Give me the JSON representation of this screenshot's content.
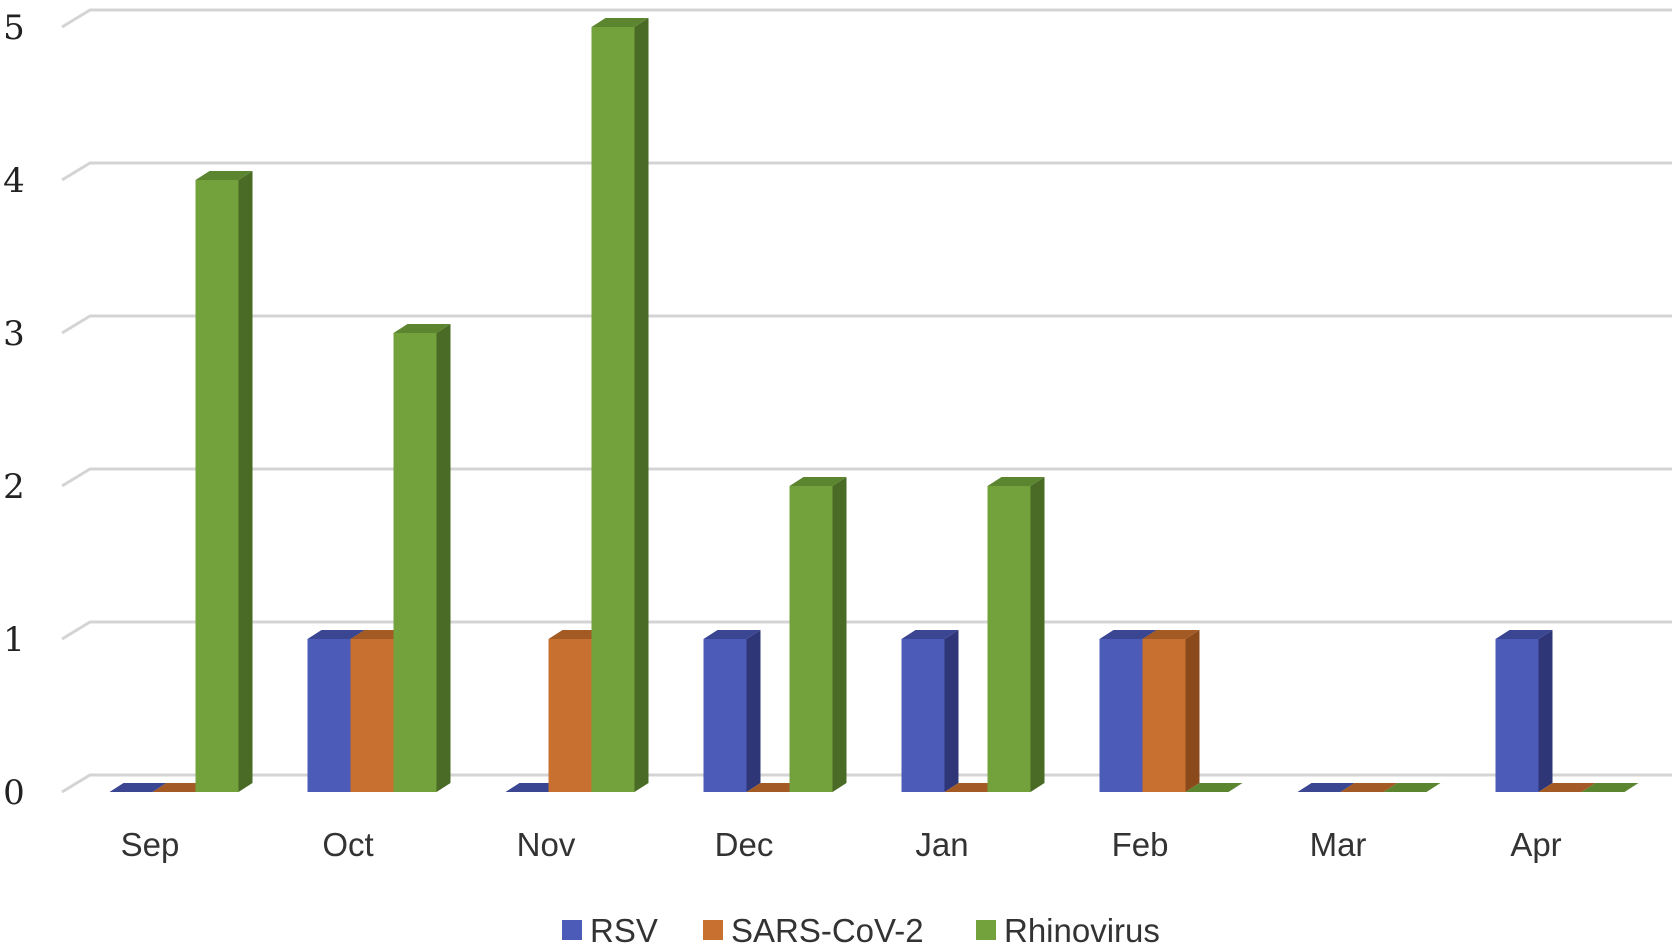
{
  "chart_data": {
    "type": "bar",
    "style": "3d-clustered-column",
    "categories": [
      "Sep",
      "Oct",
      "Nov",
      "Dec",
      "Jan",
      "Feb",
      "Mar",
      "Apr"
    ],
    "series": [
      {
        "name": "RSV",
        "values": [
          0,
          1,
          0,
          1,
          1,
          1,
          0,
          1
        ],
        "color": "#4b5bb7",
        "side": "#2e3677",
        "top": "#3a4691"
      },
      {
        "name": "SARS-CoV-2",
        "values": [
          0,
          1,
          1,
          0,
          0,
          1,
          0,
          0
        ],
        "color": "#c8702f",
        "side": "#8a4a1c",
        "top": "#a35a24"
      },
      {
        "name": "Rhinovirus",
        "values": [
          4,
          3,
          5,
          2,
          2,
          0,
          0,
          0
        ],
        "color": "#73a23c",
        "side": "#4a6b25",
        "top": "#5c8530"
      }
    ],
    "yticks": [
      "0",
      "1",
      "2",
      "3",
      "4",
      "5"
    ],
    "ylim": [
      0,
      5
    ],
    "grid": true,
    "legend": "bottom",
    "title": "",
    "xlabel": "",
    "ylabel": ""
  }
}
